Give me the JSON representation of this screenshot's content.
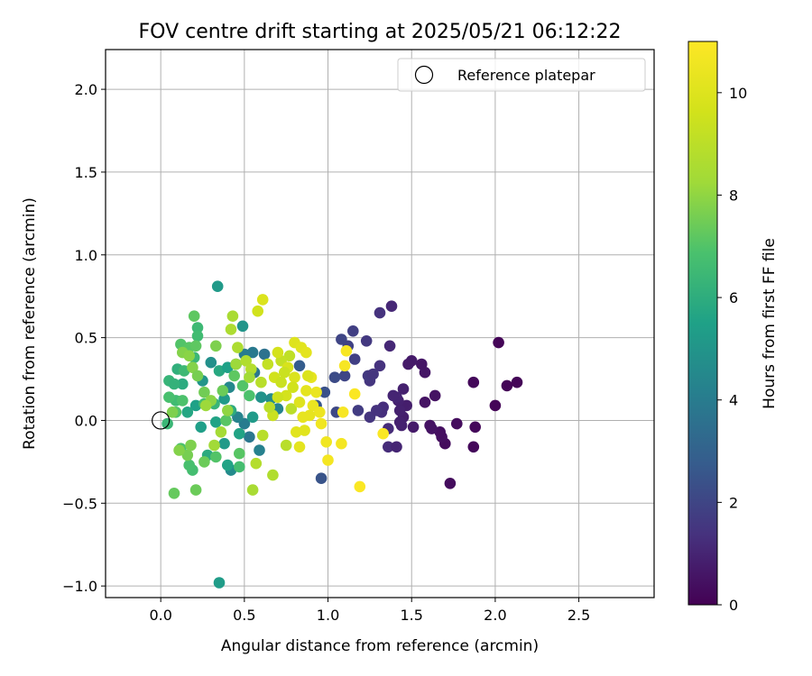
{
  "chart_data": {
    "type": "scatter",
    "title": "FOV centre drift starting at 2025/05/21 06:12:22",
    "xlabel": "Angular distance from reference (arcmin)",
    "ylabel": "Rotation from reference (arcmin)",
    "xlim": [
      -0.33,
      2.95
    ],
    "ylim": [
      -1.07,
      2.24
    ],
    "xticks": [
      "0.0",
      "0.5",
      "1.0",
      "1.5",
      "2.0",
      "2.5"
    ],
    "xtick_values": [
      0,
      0.5,
      1.0,
      1.5,
      2.0,
      2.5
    ],
    "yticks": [
      "−1.0",
      "−0.5",
      "0.0",
      "0.5",
      "1.0",
      "1.5",
      "2.0"
    ],
    "ytick_values": [
      -1.0,
      -0.5,
      0.0,
      0.5,
      1.0,
      1.5,
      2.0
    ],
    "grid": true,
    "legend": {
      "placement": "top-right",
      "entries": [
        "Reference platepar"
      ]
    },
    "reference_point": {
      "x": 0.0,
      "y": 0.0
    },
    "colorbar": {
      "label": "Hours from first FF file",
      "range": [
        0,
        11
      ],
      "ticks": [
        "0",
        "2",
        "4",
        "6",
        "8",
        "10"
      ],
      "tick_values": [
        0,
        2,
        4,
        6,
        8,
        10
      ],
      "colormap": "viridis"
    },
    "points": [
      {
        "x": 2.02,
        "y": 0.47,
        "h": 0.1
      },
      {
        "x": 2.07,
        "y": 0.21,
        "h": 0.1
      },
      {
        "x": 2.13,
        "y": 0.23,
        "h": 0.1
      },
      {
        "x": 2.0,
        "y": 0.09,
        "h": 0.1
      },
      {
        "x": 1.87,
        "y": 0.23,
        "h": 0.2
      },
      {
        "x": 1.88,
        "y": -0.04,
        "h": 0.2
      },
      {
        "x": 1.87,
        "y": -0.16,
        "h": 0.2
      },
      {
        "x": 1.77,
        "y": -0.02,
        "h": 0.3
      },
      {
        "x": 1.73,
        "y": -0.38,
        "h": 0.3
      },
      {
        "x": 1.7,
        "y": -0.14,
        "h": 0.3
      },
      {
        "x": 1.68,
        "y": -0.1,
        "h": 0.4
      },
      {
        "x": 1.67,
        "y": -0.07,
        "h": 0.4
      },
      {
        "x": 1.64,
        "y": 0.15,
        "h": 0.5
      },
      {
        "x": 1.58,
        "y": 0.11,
        "h": 0.5
      },
      {
        "x": 1.58,
        "y": 0.29,
        "h": 0.6
      },
      {
        "x": 1.56,
        "y": 0.34,
        "h": 0.6
      },
      {
        "x": 1.5,
        "y": 0.36,
        "h": 0.7
      },
      {
        "x": 1.48,
        "y": 0.34,
        "h": 0.7
      },
      {
        "x": 1.47,
        "y": 0.09,
        "h": 0.8
      },
      {
        "x": 1.45,
        "y": 0.02,
        "h": 0.8
      },
      {
        "x": 1.45,
        "y": 0.19,
        "h": 0.9
      },
      {
        "x": 1.42,
        "y": 0.12,
        "h": 0.9
      },
      {
        "x": 1.41,
        "y": 0.14,
        "h": 1.0
      },
      {
        "x": 1.39,
        "y": 0.15,
        "h": 1.0
      },
      {
        "x": 1.38,
        "y": 0.69,
        "h": 1.1
      },
      {
        "x": 1.37,
        "y": 0.45,
        "h": 1.1
      },
      {
        "x": 1.36,
        "y": -0.05,
        "h": 1.2
      },
      {
        "x": 1.36,
        "y": -0.16,
        "h": 1.2
      },
      {
        "x": 1.33,
        "y": 0.08,
        "h": 1.3
      },
      {
        "x": 1.32,
        "y": 0.05,
        "h": 1.3
      },
      {
        "x": 1.31,
        "y": 0.65,
        "h": 1.4
      },
      {
        "x": 1.31,
        "y": 0.33,
        "h": 1.4
      },
      {
        "x": 1.25,
        "y": 0.24,
        "h": 1.5
      },
      {
        "x": 1.25,
        "y": 0.02,
        "h": 1.5
      },
      {
        "x": 1.24,
        "y": 0.27,
        "h": 1.6
      },
      {
        "x": 1.23,
        "y": 0.48,
        "h": 1.6
      },
      {
        "x": 1.18,
        "y": 0.06,
        "h": 1.7
      },
      {
        "x": 1.16,
        "y": 0.37,
        "h": 1.8
      },
      {
        "x": 1.15,
        "y": 0.54,
        "h": 1.8
      },
      {
        "x": 1.12,
        "y": 0.45,
        "h": 1.9
      },
      {
        "x": 1.1,
        "y": 0.27,
        "h": 2.0
      },
      {
        "x": 1.08,
        "y": 0.49,
        "h": 2.0
      },
      {
        "x": 1.05,
        "y": 0.05,
        "h": 2.1
      },
      {
        "x": 1.04,
        "y": 0.26,
        "h": 2.2
      },
      {
        "x": 0.98,
        "y": 0.17,
        "h": 2.4
      },
      {
        "x": 0.96,
        "y": -0.35,
        "h": 2.5
      },
      {
        "x": 0.93,
        "y": 0.09,
        "h": 2.6
      },
      {
        "x": 0.83,
        "y": 0.33,
        "h": 2.8
      },
      {
        "x": 1.62,
        "y": -0.05,
        "h": 0.5
      },
      {
        "x": 1.51,
        "y": -0.04,
        "h": 0.7
      },
      {
        "x": 1.43,
        "y": -0.01,
        "h": 0.9
      },
      {
        "x": 1.41,
        "y": -0.16,
        "h": 1.0
      },
      {
        "x": 1.43,
        "y": 0.06,
        "h": 0.9
      },
      {
        "x": 1.29,
        "y": 0.06,
        "h": 1.4
      },
      {
        "x": 1.27,
        "y": 0.28,
        "h": 1.5
      },
      {
        "x": 1.44,
        "y": -0.03,
        "h": 0.9
      },
      {
        "x": 1.61,
        "y": -0.03,
        "h": 0.5
      },
      {
        "x": 0.62,
        "y": 0.4,
        "h": 3.6
      },
      {
        "x": 0.56,
        "y": 0.29,
        "h": 3.8
      },
      {
        "x": 0.55,
        "y": 0.41,
        "h": 3.9
      },
      {
        "x": 0.5,
        "y": -0.02,
        "h": 4.0
      },
      {
        "x": 0.53,
        "y": -0.1,
        "h": 3.8
      },
      {
        "x": 0.5,
        "y": 0.4,
        "h": 4.0
      },
      {
        "x": 0.46,
        "y": 0.02,
        "h": 4.3
      },
      {
        "x": 0.45,
        "y": 0.34,
        "h": 4.4
      },
      {
        "x": 0.41,
        "y": 0.2,
        "h": 4.5
      },
      {
        "x": 0.34,
        "y": 0.81,
        "h": 5.2
      },
      {
        "x": 0.35,
        "y": -0.98,
        "h": 5.3
      },
      {
        "x": 0.49,
        "y": 0.57,
        "h": 5.0
      },
      {
        "x": 0.42,
        "y": -0.3,
        "h": 4.6
      },
      {
        "x": 0.3,
        "y": 0.35,
        "h": 4.8
      },
      {
        "x": 0.25,
        "y": 0.24,
        "h": 5.0
      },
      {
        "x": 0.24,
        "y": -0.04,
        "h": 5.4
      },
      {
        "x": 0.21,
        "y": 0.09,
        "h": 5.5
      },
      {
        "x": 0.16,
        "y": 0.05,
        "h": 5.7
      },
      {
        "x": 0.13,
        "y": 0.22,
        "h": 5.9
      },
      {
        "x": 0.1,
        "y": 0.31,
        "h": 6.1
      },
      {
        "x": 0.05,
        "y": 0.24,
        "h": 6.3
      },
      {
        "x": 0.04,
        "y": -0.02,
        "h": 6.4
      },
      {
        "x": 0.08,
        "y": 0.22,
        "h": 6.2
      },
      {
        "x": 0.22,
        "y": 0.56,
        "h": 6.5
      },
      {
        "x": 0.22,
        "y": 0.51,
        "h": 6.6
      },
      {
        "x": 0.19,
        "y": -0.3,
        "h": 6.7
      },
      {
        "x": 0.17,
        "y": -0.27,
        "h": 6.8
      },
      {
        "x": 0.38,
        "y": -0.14,
        "h": 5.2
      },
      {
        "x": 0.38,
        "y": 0.13,
        "h": 5.2
      },
      {
        "x": 0.33,
        "y": -0.01,
        "h": 5.6
      },
      {
        "x": 0.28,
        "y": -0.21,
        "h": 5.9
      },
      {
        "x": 0.35,
        "y": 0.3,
        "h": 5.8
      },
      {
        "x": 0.4,
        "y": 0.32,
        "h": 5.5
      },
      {
        "x": 0.2,
        "y": 0.38,
        "h": 6.4
      },
      {
        "x": 0.14,
        "y": 0.3,
        "h": 6.5
      },
      {
        "x": 0.09,
        "y": 0.12,
        "h": 6.6
      },
      {
        "x": 0.05,
        "y": 0.14,
        "h": 6.8
      },
      {
        "x": 0.12,
        "y": -0.17,
        "h": 6.9
      },
      {
        "x": 0.12,
        "y": 0.46,
        "h": 7.0
      },
      {
        "x": 0.2,
        "y": 0.63,
        "h": 7.2
      },
      {
        "x": 0.17,
        "y": 0.44,
        "h": 7.1
      },
      {
        "x": 0.09,
        "y": 0.05,
        "h": 7.0
      },
      {
        "x": 0.08,
        "y": -0.44,
        "h": 7.3
      },
      {
        "x": 0.21,
        "y": -0.42,
        "h": 7.4
      },
      {
        "x": 0.21,
        "y": 0.45,
        "h": 7.2
      },
      {
        "x": 0.13,
        "y": 0.12,
        "h": 6.9
      },
      {
        "x": 0.26,
        "y": 0.1,
        "h": 6.7
      },
      {
        "x": 0.32,
        "y": 0.1,
        "h": 6.3
      },
      {
        "x": 0.42,
        "y": 0.06,
        "h": 5.9
      },
      {
        "x": 0.47,
        "y": -0.08,
        "h": 5.6
      },
      {
        "x": 0.55,
        "y": 0.02,
        "h": 5.2
      },
      {
        "x": 0.6,
        "y": 0.14,
        "h": 4.9
      },
      {
        "x": 0.66,
        "y": 0.13,
        "h": 4.6
      },
      {
        "x": 0.7,
        "y": 0.07,
        "h": 4.3
      },
      {
        "x": 0.59,
        "y": -0.18,
        "h": 4.2
      },
      {
        "x": 0.4,
        "y": -0.27,
        "h": 5.6
      },
      {
        "x": 0.47,
        "y": -0.28,
        "h": 6.7
      },
      {
        "x": 0.33,
        "y": -0.22,
        "h": 7.0
      },
      {
        "x": 0.26,
        "y": -0.25,
        "h": 7.4
      },
      {
        "x": 0.16,
        "y": -0.21,
        "h": 7.6
      },
      {
        "x": 0.18,
        "y": -0.15,
        "h": 7.7
      },
      {
        "x": 0.11,
        "y": -0.18,
        "h": 7.8
      },
      {
        "x": 0.07,
        "y": 0.05,
        "h": 7.7
      },
      {
        "x": 0.13,
        "y": 0.41,
        "h": 7.8
      },
      {
        "x": 0.17,
        "y": 0.39,
        "h": 7.9
      },
      {
        "x": 0.19,
        "y": 0.32,
        "h": 7.8
      },
      {
        "x": 0.22,
        "y": 0.27,
        "h": 7.6
      },
      {
        "x": 0.26,
        "y": 0.17,
        "h": 7.5
      },
      {
        "x": 0.3,
        "y": 0.12,
        "h": 7.9
      },
      {
        "x": 0.33,
        "y": 0.45,
        "h": 7.7
      },
      {
        "x": 0.37,
        "y": 0.18,
        "h": 7.4
      },
      {
        "x": 0.39,
        "y": 0.0,
        "h": 7.1
      },
      {
        "x": 0.44,
        "y": 0.27,
        "h": 7.2
      },
      {
        "x": 0.49,
        "y": 0.21,
        "h": 7.0
      },
      {
        "x": 0.53,
        "y": 0.15,
        "h": 6.9
      },
      {
        "x": 0.47,
        "y": -0.2,
        "h": 7.1
      },
      {
        "x": 0.32,
        "y": -0.15,
        "h": 8.3
      },
      {
        "x": 0.36,
        "y": -0.07,
        "h": 8.4
      },
      {
        "x": 0.27,
        "y": 0.09,
        "h": 8.2
      },
      {
        "x": 0.4,
        "y": 0.06,
        "h": 8.0
      },
      {
        "x": 0.45,
        "y": 0.34,
        "h": 8.2
      },
      {
        "x": 0.43,
        "y": 0.63,
        "h": 8.5
      },
      {
        "x": 0.42,
        "y": 0.55,
        "h": 8.6
      },
      {
        "x": 0.46,
        "y": 0.44,
        "h": 8.6
      },
      {
        "x": 0.51,
        "y": 0.36,
        "h": 8.7
      },
      {
        "x": 0.54,
        "y": 0.31,
        "h": 8.8
      },
      {
        "x": 0.55,
        "y": -0.42,
        "h": 8.5
      },
      {
        "x": 0.53,
        "y": 0.26,
        "h": 8.3
      },
      {
        "x": 0.61,
        "y": -0.09,
        "h": 8.9
      },
      {
        "x": 0.57,
        "y": -0.26,
        "h": 8.8
      },
      {
        "x": 0.67,
        "y": -0.33,
        "h": 8.7
      },
      {
        "x": 0.75,
        "y": -0.15,
        "h": 8.9
      },
      {
        "x": 0.78,
        "y": 0.07,
        "h": 9.0
      },
      {
        "x": 0.77,
        "y": 0.39,
        "h": 9.1
      },
      {
        "x": 0.72,
        "y": 0.36,
        "h": 9.2
      },
      {
        "x": 0.64,
        "y": 0.34,
        "h": 9.2
      },
      {
        "x": 0.58,
        "y": 0.66,
        "h": 9.6
      },
      {
        "x": 0.61,
        "y": 0.73,
        "h": 9.9
      },
      {
        "x": 0.68,
        "y": 0.26,
        "h": 9.6
      },
      {
        "x": 0.7,
        "y": 0.41,
        "h": 9.7
      },
      {
        "x": 0.8,
        "y": 0.47,
        "h": 10.0
      },
      {
        "x": 0.84,
        "y": 0.44,
        "h": 10.1
      },
      {
        "x": 0.87,
        "y": 0.41,
        "h": 10.2
      },
      {
        "x": 0.8,
        "y": 0.26,
        "h": 9.9
      },
      {
        "x": 0.75,
        "y": 0.15,
        "h": 9.7
      },
      {
        "x": 0.83,
        "y": 0.11,
        "h": 10.0
      },
      {
        "x": 0.87,
        "y": 0.18,
        "h": 10.2
      },
      {
        "x": 0.9,
        "y": 0.26,
        "h": 10.3
      },
      {
        "x": 0.86,
        "y": -0.06,
        "h": 10.1
      },
      {
        "x": 0.81,
        "y": -0.07,
        "h": 10.1
      },
      {
        "x": 0.91,
        "y": 0.09,
        "h": 10.4
      },
      {
        "x": 0.95,
        "y": 0.05,
        "h": 10.5
      },
      {
        "x": 0.96,
        "y": -0.02,
        "h": 10.6
      },
      {
        "x": 0.99,
        "y": -0.13,
        "h": 10.6
      },
      {
        "x": 1.0,
        "y": -0.24,
        "h": 10.7
      },
      {
        "x": 1.08,
        "y": -0.14,
        "h": 10.7
      },
      {
        "x": 1.11,
        "y": 0.42,
        "h": 10.8
      },
      {
        "x": 1.1,
        "y": 0.33,
        "h": 10.8
      },
      {
        "x": 1.09,
        "y": 0.05,
        "h": 10.8
      },
      {
        "x": 1.16,
        "y": 0.16,
        "h": 10.9
      },
      {
        "x": 1.19,
        "y": -0.4,
        "h": 10.9
      },
      {
        "x": 1.33,
        "y": -0.08,
        "h": 10.9
      },
      {
        "x": 0.67,
        "y": 0.03,
        "h": 9.4
      },
      {
        "x": 0.72,
        "y": 0.23,
        "h": 9.4
      },
      {
        "x": 0.7,
        "y": 0.14,
        "h": 9.5
      },
      {
        "x": 0.76,
        "y": 0.32,
        "h": 9.8
      },
      {
        "x": 0.79,
        "y": 0.2,
        "h": 9.6
      },
      {
        "x": 0.88,
        "y": 0.27,
        "h": 9.9
      },
      {
        "x": 0.89,
        "y": 0.03,
        "h": 10.3
      },
      {
        "x": 0.83,
        "y": -0.16,
        "h": 10.2
      },
      {
        "x": 0.85,
        "y": 0.02,
        "h": 10.3
      },
      {
        "x": 0.93,
        "y": 0.17,
        "h": 10.4
      },
      {
        "x": 0.65,
        "y": 0.08,
        "h": 9.0
      },
      {
        "x": 0.6,
        "y": 0.23,
        "h": 8.9
      },
      {
        "x": 0.74,
        "y": 0.29,
        "h": 9.4
      }
    ]
  }
}
